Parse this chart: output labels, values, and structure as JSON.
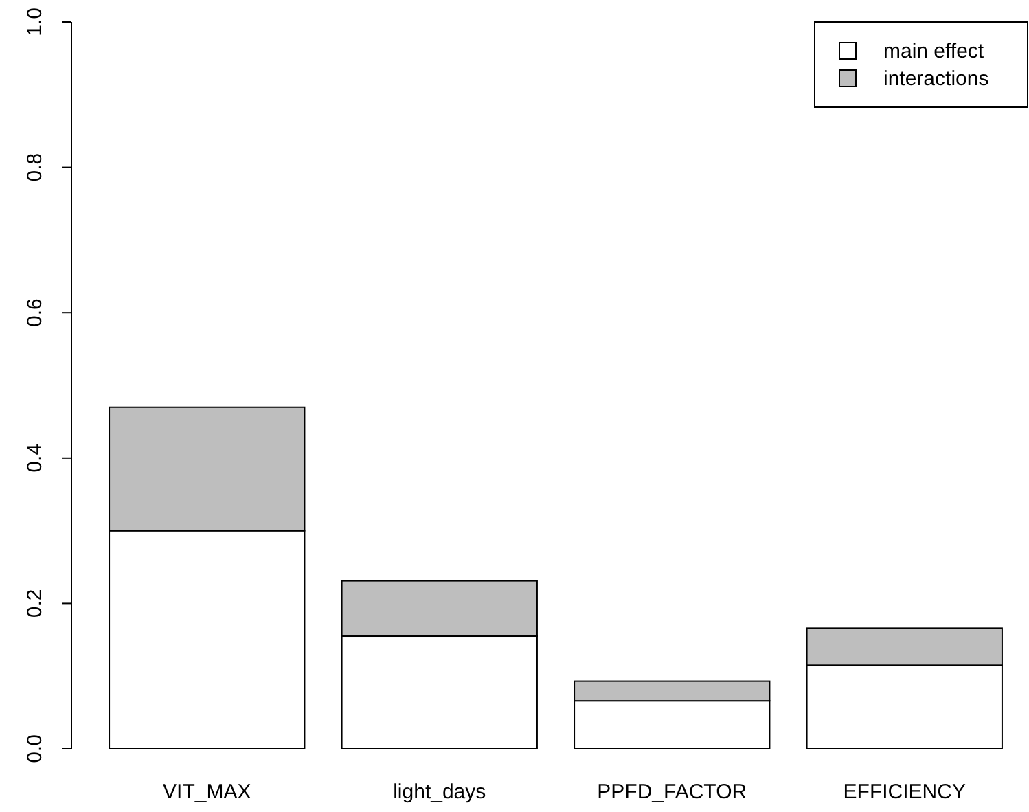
{
  "chart_data": {
    "type": "bar",
    "stacked": true,
    "categories": [
      "VIT_MAX",
      "light_days",
      "PPFD_FACTOR",
      "EFFICIENCY"
    ],
    "series": [
      {
        "name": "main effect",
        "color": "#ffffff",
        "values": [
          0.3,
          0.155,
          0.066,
          0.115
        ]
      },
      {
        "name": "interactions",
        "color": "#bebebe",
        "values": [
          0.17,
          0.076,
          0.027,
          0.051
        ]
      }
    ],
    "ylim": [
      0,
      1
    ],
    "yticks": [
      {
        "value": 0,
        "label": "0.0"
      },
      {
        "value": 0.2,
        "label": "0.2"
      },
      {
        "value": 0.4,
        "label": "0.4"
      },
      {
        "value": 0.6,
        "label": "0.6"
      },
      {
        "value": 0.8,
        "label": "0.8"
      },
      {
        "value": 1,
        "label": "1.0"
      }
    ],
    "legend": "top right",
    "grid": false
  }
}
